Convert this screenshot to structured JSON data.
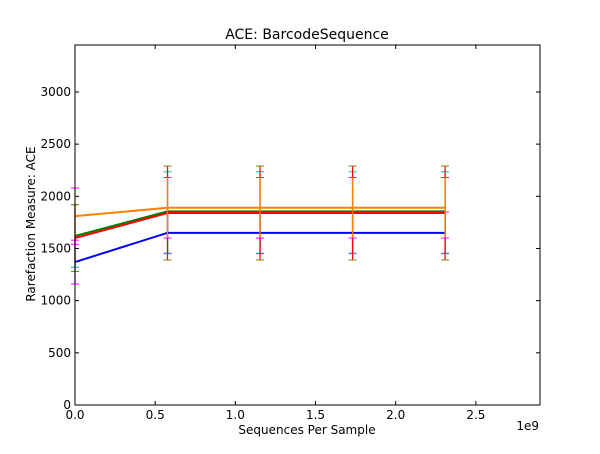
{
  "chart_data": {
    "type": "line",
    "title": "ACE: BarcodeSequence",
    "xlabel": "Sequences Per Sample",
    "ylabel": "Rarefaction Measure: ACE",
    "x_offset_text": "1e9",
    "xlim": [
      0,
      2.9
    ],
    "ylim": [
      0,
      3450
    ],
    "x_ticks": [
      0.0,
      0.5,
      1.0,
      1.5,
      2.0,
      2.5
    ],
    "x_tick_labels": [
      "0.0",
      "0.5",
      "1.0",
      "1.5",
      "2.0",
      "2.5"
    ],
    "y_ticks": [
      0,
      500,
      1000,
      1500,
      2000,
      2500,
      3000
    ],
    "y_tick_labels": [
      "0",
      "500",
      "1000",
      "1500",
      "2000",
      "2500",
      "3000"
    ],
    "x": [
      0.0,
      0.577,
      1.154,
      1.731,
      2.308
    ],
    "grid": false,
    "legend": "none",
    "series": [
      {
        "color": "#0000ff",
        "values": [
          1370,
          1650,
          1650,
          1650,
          1650
        ],
        "err_low": [
          210,
          200,
          200,
          200,
          200
        ],
        "err_high": [
          210,
          200,
          200,
          200,
          200
        ]
      },
      {
        "color": "#008000",
        "values": [
          1620,
          1855,
          1855,
          1855,
          1855
        ],
        "err_low": [
          300,
          400,
          400,
          400,
          400
        ],
        "err_high": [
          300,
          380,
          380,
          380,
          380
        ]
      },
      {
        "color": "#ff0000",
        "values": [
          1600,
          1840,
          1840,
          1840,
          1840
        ],
        "err_low": [
          320,
          450,
          450,
          450,
          450
        ],
        "err_high": [
          320,
          450,
          450,
          450,
          450
        ]
      },
      {
        "color": "#ff8000",
        "values": [
          1810,
          1890,
          1890,
          1890,
          1890
        ],
        "err_low": [
          270,
          290,
          290,
          290,
          290
        ],
        "err_high": [
          270,
          290,
          290,
          290,
          290
        ]
      }
    ],
    "errorbar_colors": [
      "#ff00ff",
      "#00bfbf",
      "#808000"
    ]
  }
}
